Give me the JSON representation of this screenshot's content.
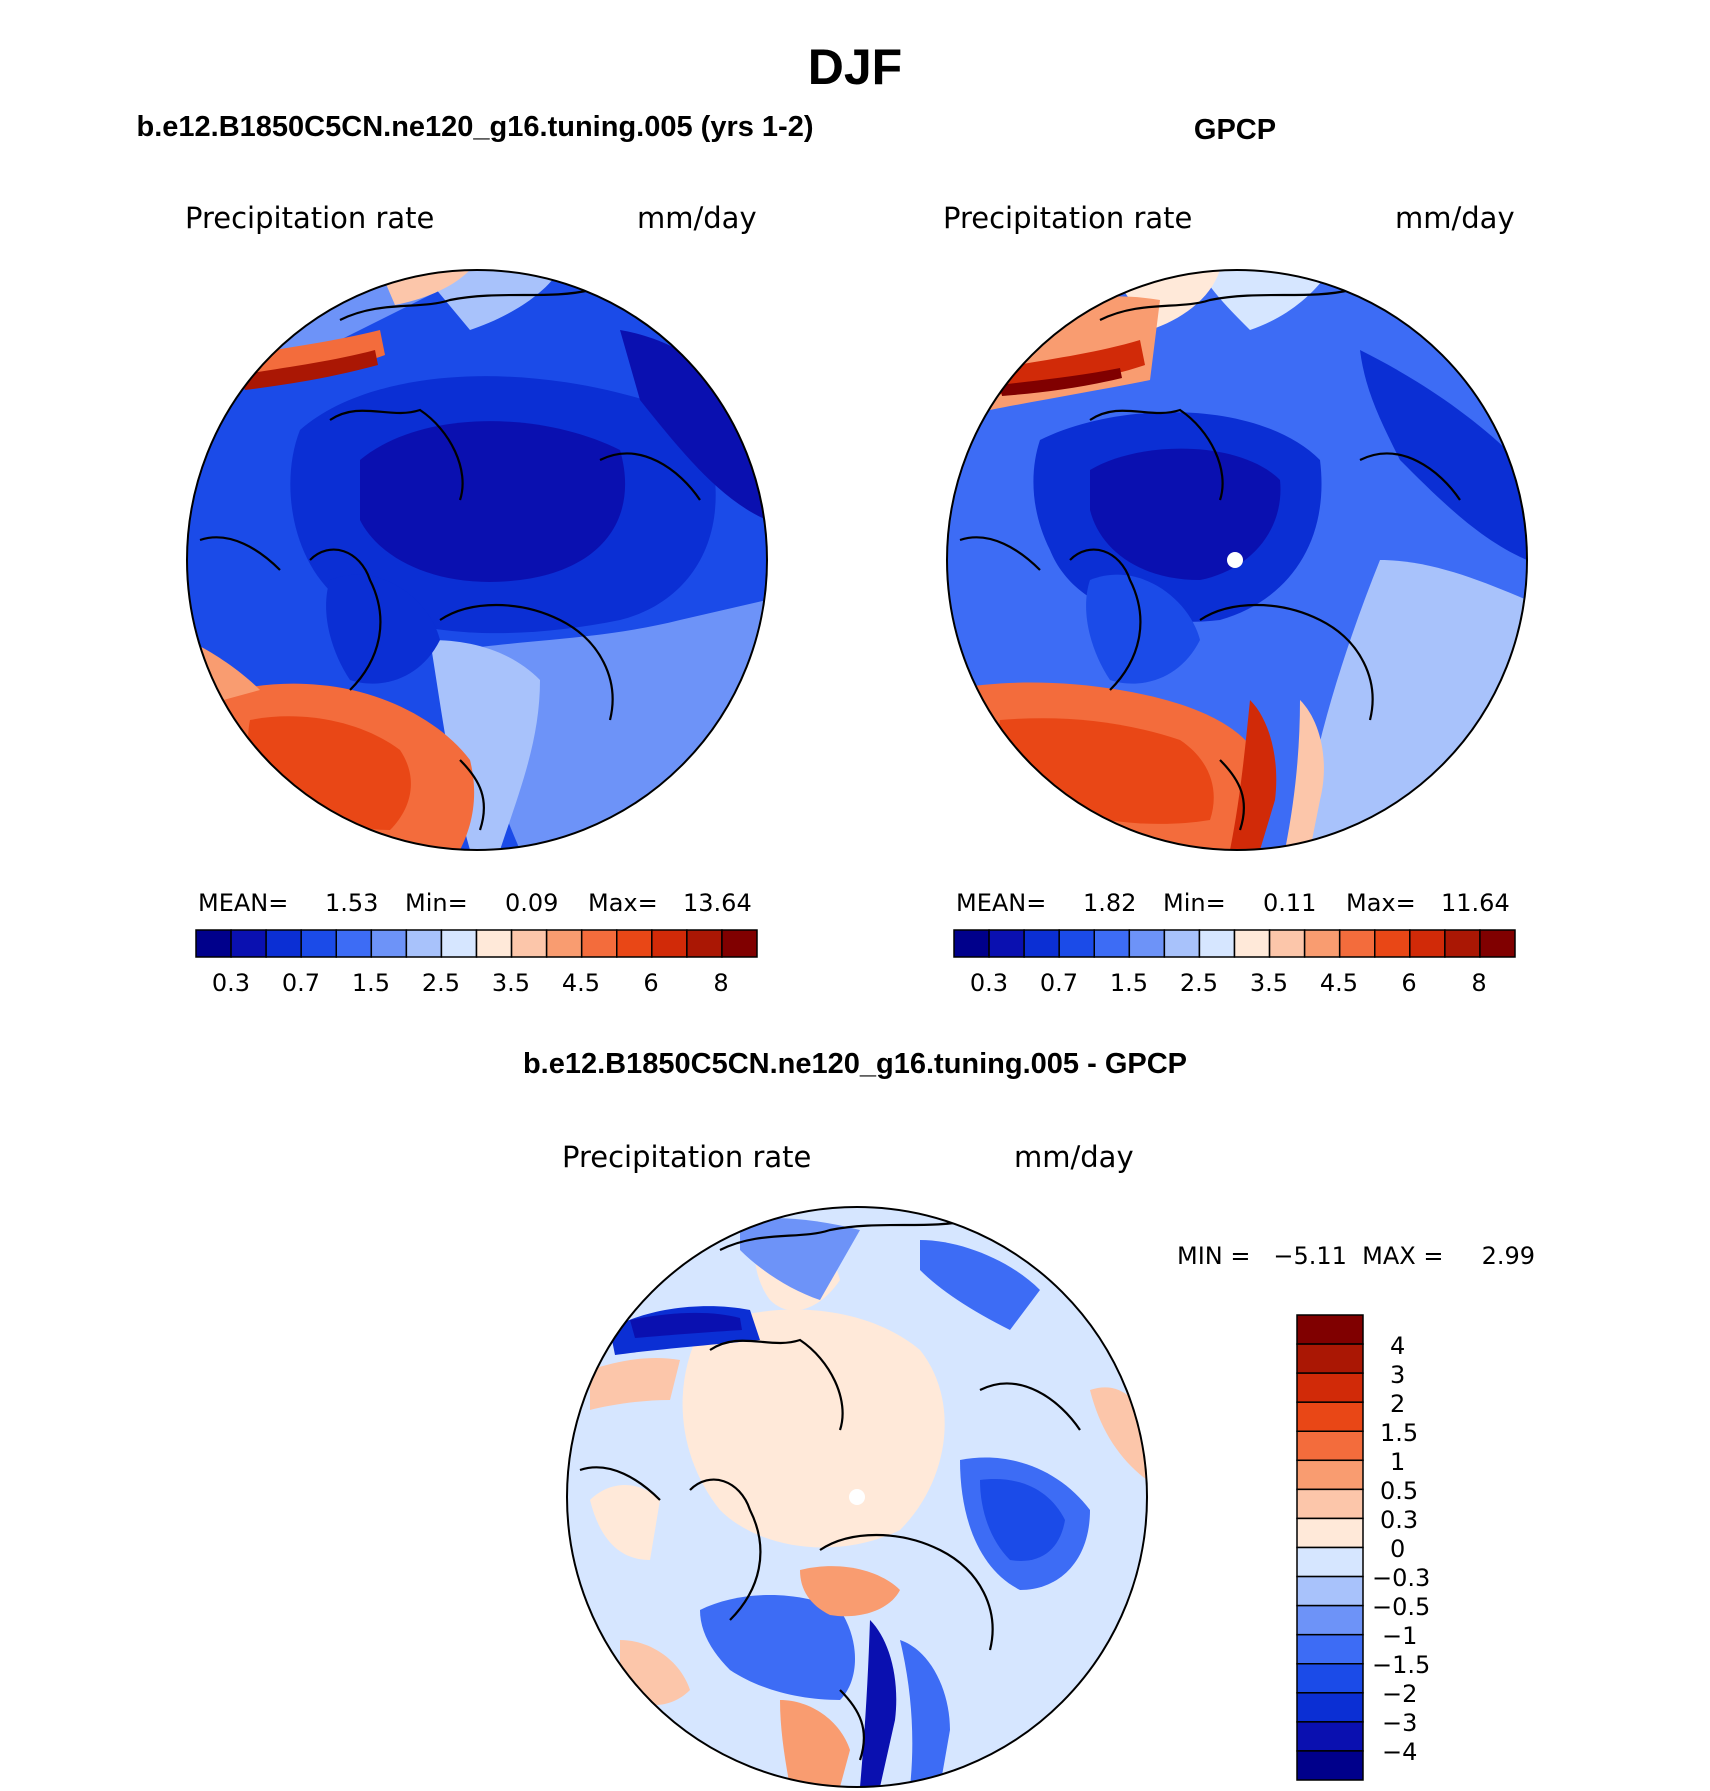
{
  "figure": {
    "season": "DJF",
    "map_type": "polar stereographic, north pole"
  },
  "colors": {
    "abs_levels": [
      "#00008b",
      "#0a10b0",
      "#0b2fd4",
      "#1b4be8",
      "#3d6cf5",
      "#6d93f8",
      "#a8c2fb",
      "#d6e6ff",
      "#ffe9d9",
      "#fcc6aa",
      "#f99c70",
      "#f36c3c",
      "#e94716",
      "#d12a08",
      "#aa1704",
      "#800000"
    ],
    "diff_levels": [
      "#00008b",
      "#0a10b0",
      "#0b2fd4",
      "#1b4be8",
      "#3d6cf5",
      "#6d93f8",
      "#a8c2fb",
      "#d6e6ff",
      "#ffe9d9",
      "#fcc6aa",
      "#f99c70",
      "#f36c3c",
      "#e94716",
      "#d12a08",
      "#aa1704",
      "#800000"
    ],
    "coast": "#000000"
  },
  "panels": [
    {
      "id": "model",
      "title": "b.e12.B1850C5CN.ne120_g16.tuning.005 (yrs 1-2)",
      "variable": "Precipitation rate",
      "units": "mm/day",
      "stats_labels": [
        "MEAN=",
        "Min=",
        "Max="
      ],
      "stats_values": [
        "1.53",
        "0.09",
        "13.64"
      ],
      "colorbar_ticks": [
        "0.3",
        "0.7",
        "1.5",
        "2.5",
        "3.5",
        "4.5",
        "6",
        "8"
      ]
    },
    {
      "id": "obs",
      "title": "GPCP",
      "variable": "Precipitation rate",
      "units": "mm/day",
      "stats_labels": [
        "MEAN=",
        "Min=",
        "Max="
      ],
      "stats_values": [
        "1.82",
        "0.11",
        "11.64"
      ],
      "colorbar_ticks": [
        "0.3",
        "0.7",
        "1.5",
        "2.5",
        "3.5",
        "4.5",
        "6",
        "8"
      ]
    },
    {
      "id": "diff",
      "title": "b.e12.B1850C5CN.ne120_g16.tuning.005 - GPCP",
      "variable": "Precipitation rate",
      "units": "mm/day",
      "stats_text": "MIN =   −5.11  MAX =     2.99",
      "colorbar_ticks": [
        "4",
        "3",
        "2",
        "1.5",
        "1",
        "0.5",
        "0.3",
        "0",
        "−0.3",
        "−0.5",
        "−1",
        "−1.5",
        "−2",
        "−3",
        "−4"
      ]
    }
  ]
}
